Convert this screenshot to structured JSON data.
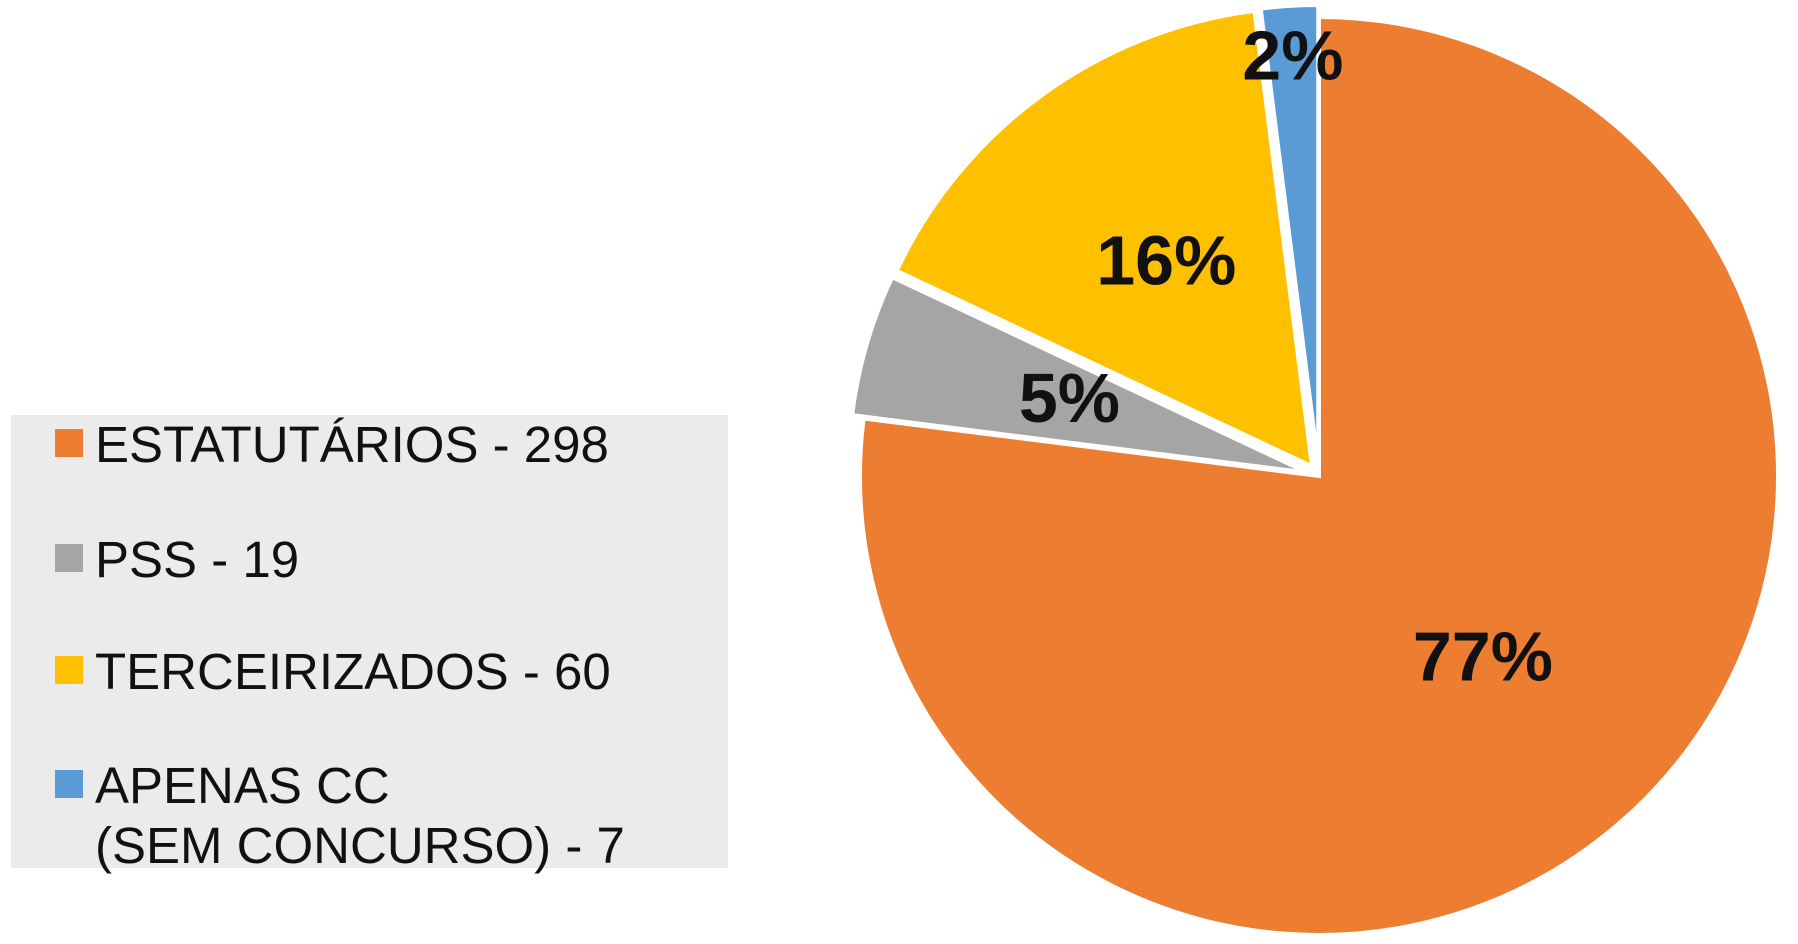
{
  "chart_data": {
    "type": "pie",
    "categories": [
      "ESTATUTÁRIOS - 298",
      "PSS - 19",
      "TERCEIRIZADOS - 60",
      "APENAS CC\n(SEM CONCURSO) - 7"
    ],
    "values": [
      77,
      5,
      16,
      2
    ],
    "value_labels": [
      "77%",
      "5%",
      "16%",
      "2%"
    ],
    "colors": [
      "#ed7d31",
      "#a5a5a5",
      "#ffc000",
      "#5b9bd5"
    ],
    "legend": "left"
  }
}
